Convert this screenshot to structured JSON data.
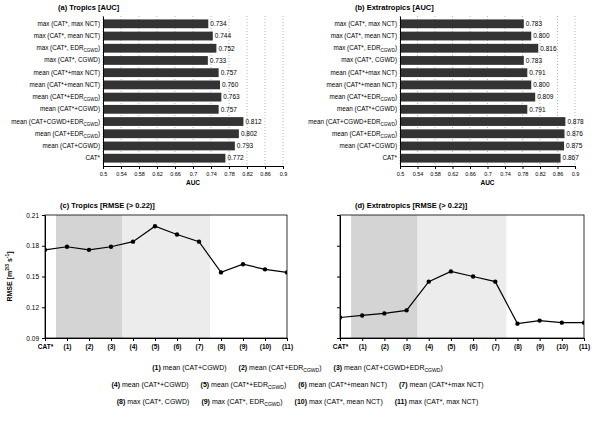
{
  "chart_data": [
    {
      "type": "bar",
      "title": "(a) Tropics [AUC]",
      "orientation": "horizontal",
      "xlabel": "AUC",
      "categories": [
        "max (CAT*, max NCT)",
        "max (CAT*, mean NCT)",
        "max (CAT*, EDRCGWD)",
        "max (CAT*, CGWD)",
        "mean (CAT*+max NCT)",
        "mean (CAT*+mean NCT)",
        "mean (CAT*+EDRCGWD)",
        "mean (CAT*+CGWD)",
        "mean (CAT+CGWD+EDRCGWD)",
        "mean (CAT+EDRCGWD)",
        "mean (CAT+CGWD)",
        "CAT*"
      ],
      "values": [
        0.734,
        0.744,
        0.752,
        0.733,
        0.757,
        0.76,
        0.763,
        0.757,
        0.812,
        0.802,
        0.793,
        0.772
      ],
      "value_labels": [
        "0.734",
        "0.744",
        "0.752",
        "0.733",
        "0.757",
        "0.760",
        "0.763",
        "0.757",
        "0.812",
        "0.802",
        "0.793",
        "0.772"
      ],
      "color": "#333333",
      "data_labels": true,
      "grid": true,
      "xlim": [
        0.5,
        0.9
      ],
      "xticks": [
        0.5,
        0.54,
        0.58,
        0.62,
        0.66,
        0.7,
        0.74,
        0.78,
        0.82,
        0.86,
        0.9
      ]
    },
    {
      "type": "bar",
      "title": "(b) Extratropics [AUC]",
      "orientation": "horizontal",
      "xlabel": "AUC",
      "categories": [
        "max (CAT*, max NCT)",
        "max (CAT*, mean NCT)",
        "max (CAT*, EDRCGWD)",
        "max (CAT*, CGWD)",
        "mean (CAT*+max NCT)",
        "mean (CAT*+mean NCT)",
        "mean (CAT*+EDRCGWD)",
        "mean (CAT*+CGWD)",
        "mean (CAT+CGWD+EDRCGWD)",
        "mean (CAT+EDRCGWD)",
        "mean (CAT+CGWD)",
        "CAT*"
      ],
      "values": [
        0.783,
        0.8,
        0.816,
        0.783,
        0.791,
        0.8,
        0.809,
        0.791,
        0.878,
        0.876,
        0.875,
        0.867
      ],
      "value_labels": [
        "0.783",
        "0.800",
        "0.816",
        "0.783",
        "0.791",
        "0.800",
        "0.809",
        "0.791",
        "0.878",
        "0.876",
        "0.875",
        "0.867"
      ],
      "color": "#333333",
      "data_labels": true,
      "grid": true,
      "xlim": [
        0.5,
        0.9
      ],
      "xticks": [
        0.5,
        0.54,
        0.58,
        0.62,
        0.66,
        0.7,
        0.74,
        0.78,
        0.82,
        0.86,
        0.9
      ]
    },
    {
      "type": "line",
      "title": "(c) Tropics [RMSE (> 0.22)]",
      "ylabel": "RMSE [m2/3 s-1]",
      "categories": [
        "CAT*",
        "(1)",
        "(2)",
        "(3)",
        "(4)",
        "(5)",
        "(6)",
        "(7)",
        "(8)",
        "(9)",
        "(10)",
        "(11)"
      ],
      "values": [
        0.176,
        0.179,
        0.176,
        0.179,
        0.184,
        0.199,
        0.191,
        0.184,
        0.154,
        0.162,
        0.157,
        0.154
      ],
      "color": "#000000",
      "marker": "circle",
      "ylim": [
        0.09,
        0.21
      ],
      "yticks": [
        0.09,
        0.12,
        0.15,
        0.18,
        0.21
      ],
      "annotations": [
        [
          "(1) mean (CAT+CGWD)",
          "(2) mean (CAT+EDRCGWD)",
          "(3) mean (CAT+CGWD+EDRCGWD)"
        ],
        [
          "(4) mean (CAT*+CGWD)",
          "(5) mean (CAT*+EDRCGWD)",
          "(6) mean (CAT*+mean NCT)",
          "(7) mean (CAT*+max NCT)"
        ],
        [
          "(8) max (CAT*, CGWD)",
          "(9) max (CAT*, EDRCGWD)",
          "(10) max (CAT*, mean NCT)",
          "(11) max (CAT*, max NCT)"
        ]
      ]
    },
    {
      "type": "line",
      "title": "(d) Extratropics [RMSE (> 0.22)]",
      "categories": [
        "CAT*",
        "(1)",
        "(2)",
        "(3)",
        "(4)",
        "(5)",
        "(6)",
        "(7)",
        "(8)",
        "(9)",
        "(10)",
        "(11)"
      ],
      "values": [
        0.11,
        0.112,
        0.114,
        0.117,
        0.145,
        0.155,
        0.15,
        0.145,
        0.104,
        0.107,
        0.105,
        0.105
      ],
      "color": "#000000",
      "marker": "circle",
      "tick_labels": "x",
      "ylim": [
        0.09,
        0.21
      ],
      "yticks": [
        0.09,
        0.12,
        0.15,
        0.18,
        0.21
      ]
    }
  ]
}
